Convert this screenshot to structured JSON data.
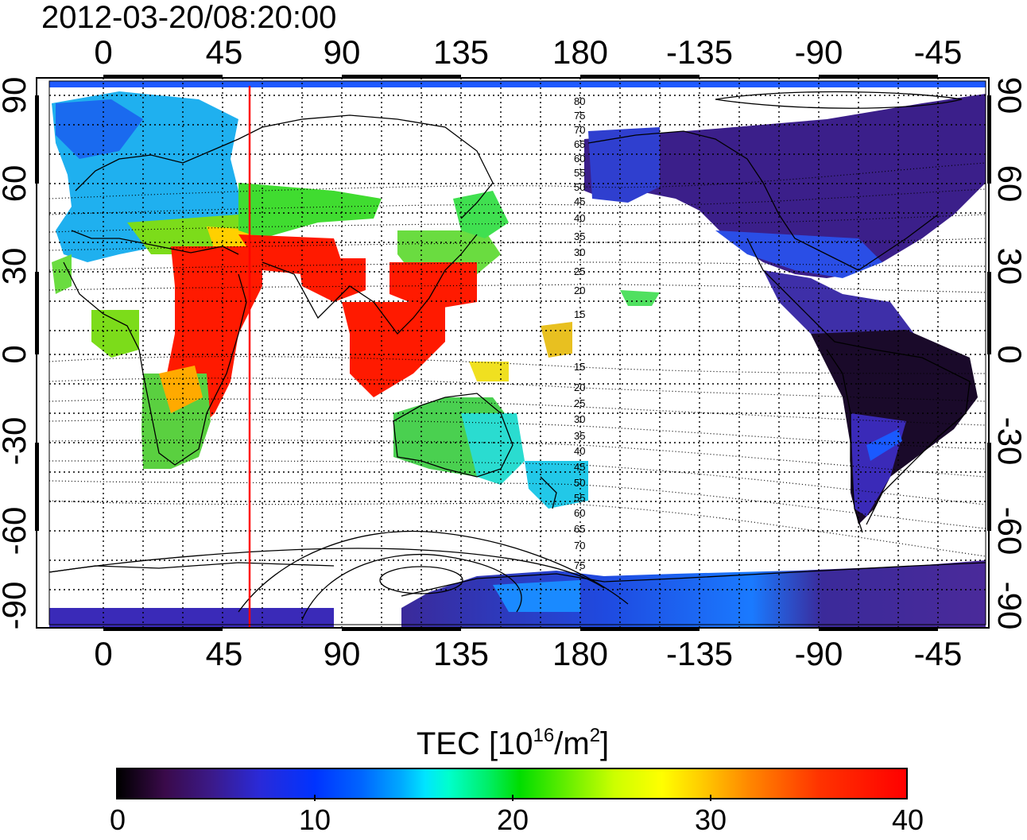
{
  "timestamp": "2012-03-20/08:20:00",
  "x_ticks": [
    "0",
    "45",
    "90",
    "135",
    "180",
    "-135",
    "-90",
    "-45"
  ],
  "y_ticks": [
    "90",
    "60",
    "30",
    "0",
    "-30",
    "-60",
    "-90"
  ],
  "contour_labels_north": [
    "80",
    "75",
    "70",
    "65",
    "60",
    "55",
    "50",
    "45",
    "40",
    "35",
    "30",
    "25",
    "20",
    "15"
  ],
  "contour_labels_south": [
    "15",
    "20",
    "25",
    "30",
    "35",
    "40",
    "45",
    "50",
    "55",
    "60",
    "65",
    "70",
    "75"
  ],
  "colorbar": {
    "title_main": "TEC  [10",
    "title_exp1": "16",
    "title_mid": "/m",
    "title_exp2": "2",
    "title_end": "]",
    "ticks": [
      "0",
      "10",
      "20",
      "30",
      "40"
    ],
    "range": [
      0,
      40
    ],
    "colors": [
      "#000000",
      "#3b1a8a",
      "#0033ff",
      "#00e5ff",
      "#00dd00",
      "#ffff00",
      "#ff8800",
      "#ff0000"
    ]
  },
  "reference_meridian_longitude": 55,
  "reference_meridian_color": "#ff0000",
  "map_extent": {
    "lon_start": -20,
    "lon_end": 320,
    "lat_min": -90,
    "lat_max": 90
  }
}
